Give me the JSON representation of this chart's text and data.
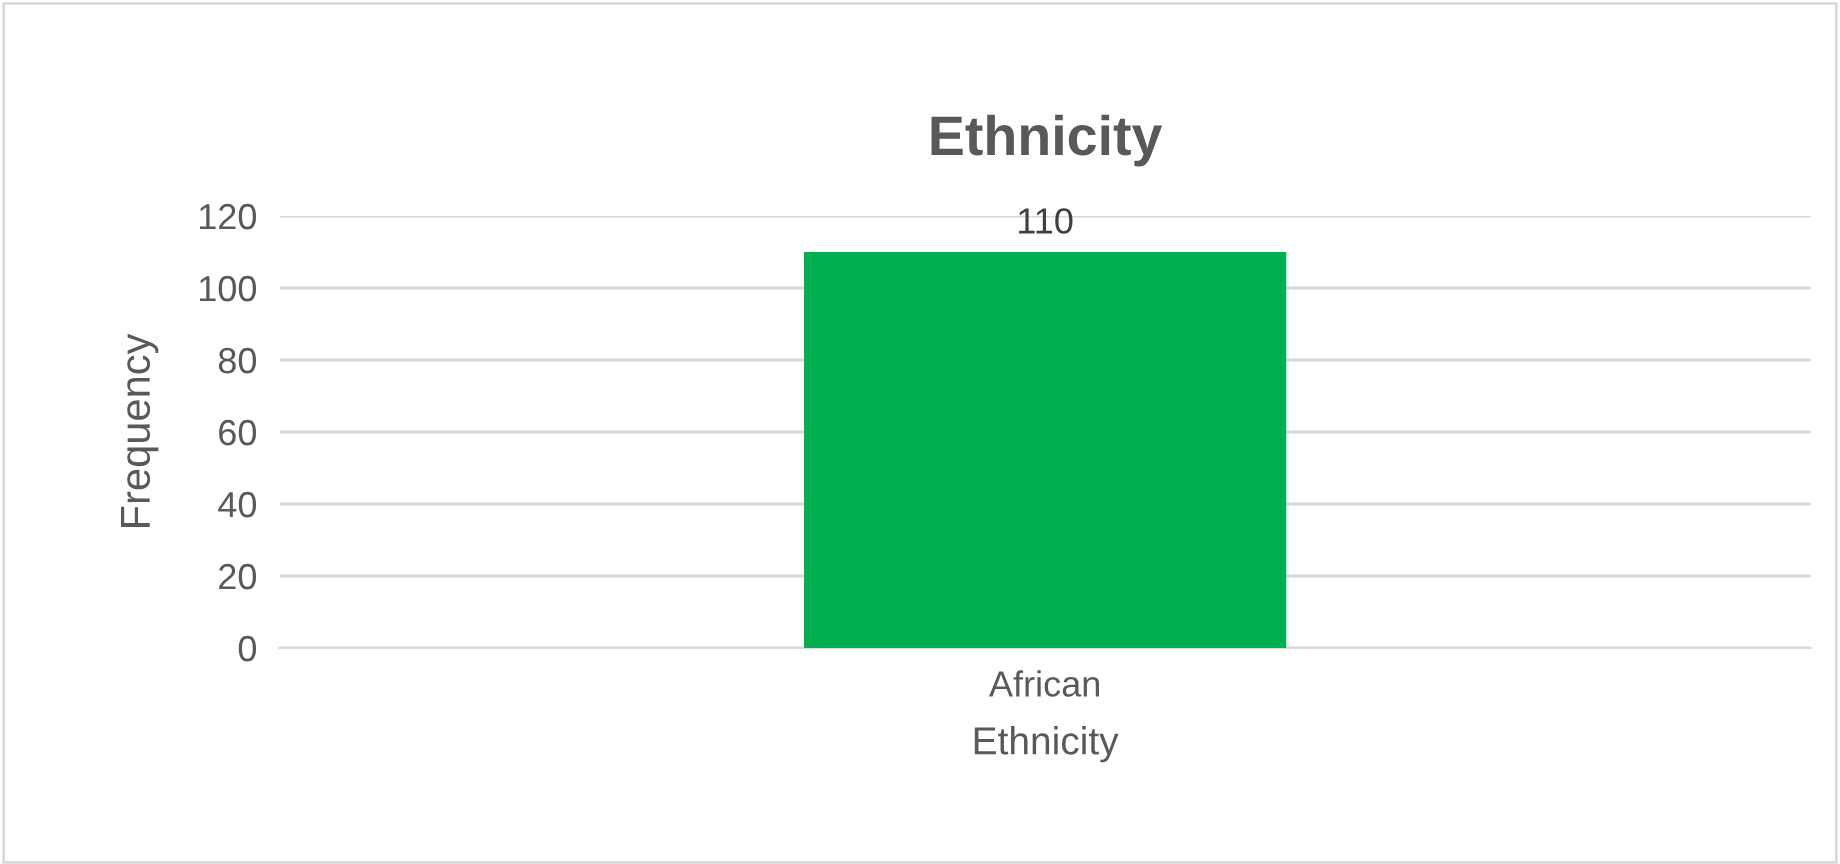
{
  "chart_data": {
    "type": "bar",
    "title": "Ethnicity",
    "xlabel": "Ethnicity",
    "ylabel": "Frequency",
    "categories": [
      "African"
    ],
    "values": [
      110
    ],
    "color": "#00b050",
    "ylim": [
      0,
      120
    ],
    "yticks": [
      0,
      20,
      40,
      60,
      80,
      100,
      120
    ],
    "grid": "y",
    "data_labels": true,
    "legend": false
  }
}
